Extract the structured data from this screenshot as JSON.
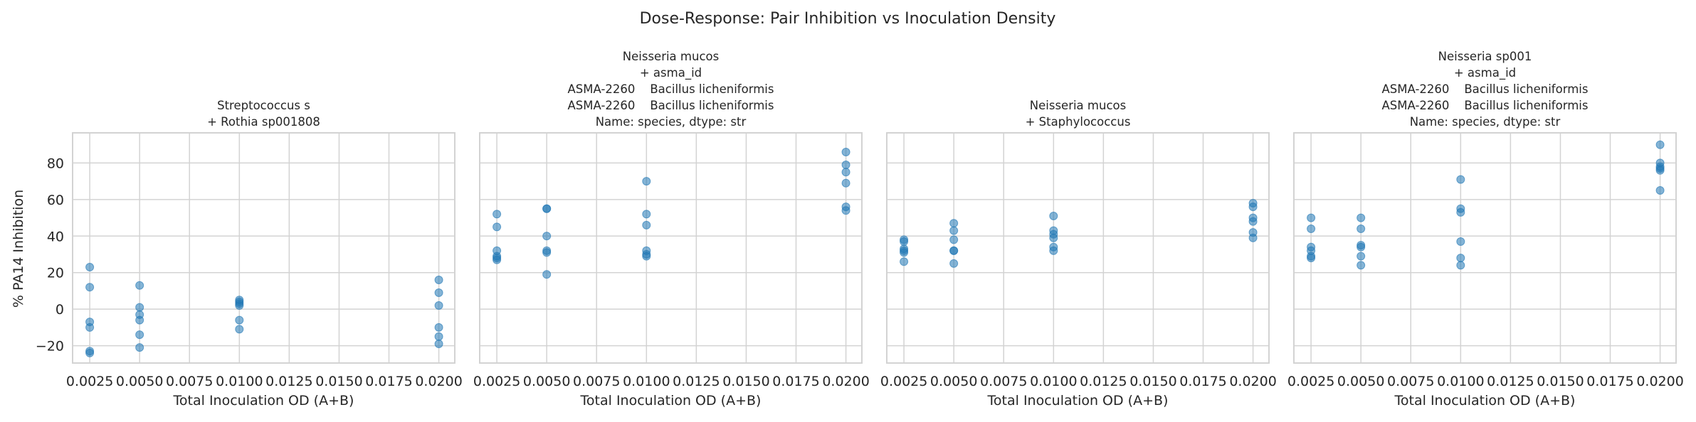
{
  "figure_title": "Dose-Response: Pair Inhibition vs Inoculation Density",
  "colors": {
    "points": "#1f77b4",
    "grid": "#d3d3d3",
    "text": "#262626"
  },
  "chart_data": [
    {
      "type": "scatter",
      "title_lines": [
        "Streptococcus s",
        "+ Rothia sp001808"
      ],
      "xlabel": "Total Inoculation OD (A+B)",
      "ylabel": "% PA14 Inhibition",
      "xlim": [
        0.00164,
        0.0208
      ],
      "ylim": [
        -29.5,
        96.5
      ],
      "xticks": [
        "0.0025",
        "0.0050",
        "0.0075",
        "0.0100",
        "0.0125",
        "0.0150",
        "0.0175",
        "0.0200"
      ],
      "yticks": [
        "80",
        "60",
        "40",
        "20",
        "0",
        "−20"
      ],
      "grid": true,
      "points": [
        [
          0.0025,
          23
        ],
        [
          0.0025,
          12
        ],
        [
          0.0025,
          -7
        ],
        [
          0.0025,
          -10
        ],
        [
          0.0025,
          -23
        ],
        [
          0.0025,
          -24
        ],
        [
          0.005,
          13
        ],
        [
          0.005,
          1
        ],
        [
          0.005,
          -3
        ],
        [
          0.005,
          -6
        ],
        [
          0.005,
          -14
        ],
        [
          0.005,
          -21
        ],
        [
          0.01,
          5
        ],
        [
          0.01,
          4
        ],
        [
          0.01,
          3
        ],
        [
          0.01,
          2
        ],
        [
          0.01,
          -6
        ],
        [
          0.01,
          -11
        ],
        [
          0.02,
          16
        ],
        [
          0.02,
          9
        ],
        [
          0.02,
          2
        ],
        [
          0.02,
          -10
        ],
        [
          0.02,
          -15
        ],
        [
          0.02,
          -19
        ]
      ]
    },
    {
      "type": "scatter",
      "title_lines": [
        "Neisseria mucos",
        "+ asma_id",
        "ASMA-2260    Bacillus licheniformis",
        "ASMA-2260    Bacillus licheniformis",
        "Name: species, dtype: str"
      ],
      "xlabel": "Total Inoculation OD (A+B)",
      "xlim": [
        0.00164,
        0.0208
      ],
      "ylim": [
        -29.5,
        96.5
      ],
      "xticks": [
        "0.0025",
        "0.0050",
        "0.0075",
        "0.0100",
        "0.0125",
        "0.0150",
        "0.0175",
        "0.0200"
      ],
      "grid": true,
      "points": [
        [
          0.0025,
          52
        ],
        [
          0.0025,
          45
        ],
        [
          0.0025,
          32
        ],
        [
          0.0025,
          29
        ],
        [
          0.0025,
          28
        ],
        [
          0.0025,
          27
        ],
        [
          0.005,
          55
        ],
        [
          0.005,
          55
        ],
        [
          0.005,
          40
        ],
        [
          0.005,
          32
        ],
        [
          0.005,
          31
        ],
        [
          0.005,
          19
        ],
        [
          0.01,
          70
        ],
        [
          0.01,
          52
        ],
        [
          0.01,
          46
        ],
        [
          0.01,
          32
        ],
        [
          0.01,
          30
        ],
        [
          0.01,
          29
        ],
        [
          0.02,
          86
        ],
        [
          0.02,
          79
        ],
        [
          0.02,
          75
        ],
        [
          0.02,
          69
        ],
        [
          0.02,
          56
        ],
        [
          0.02,
          54
        ]
      ]
    },
    {
      "type": "scatter",
      "title_lines": [
        "Neisseria mucos",
        "+ Staphylococcus"
      ],
      "xlabel": "Total Inoculation OD (A+B)",
      "xlim": [
        0.00164,
        0.0208
      ],
      "ylim": [
        -29.5,
        96.5
      ],
      "xticks": [
        "0.0025",
        "0.0050",
        "0.0075",
        "0.0100",
        "0.0125",
        "0.0150",
        "0.0175",
        "0.0200"
      ],
      "grid": true,
      "points": [
        [
          0.0025,
          38
        ],
        [
          0.0025,
          37
        ],
        [
          0.0025,
          33
        ],
        [
          0.0025,
          32
        ],
        [
          0.0025,
          31
        ],
        [
          0.0025,
          26
        ],
        [
          0.005,
          47
        ],
        [
          0.005,
          43
        ],
        [
          0.005,
          38
        ],
        [
          0.005,
          32
        ],
        [
          0.005,
          32
        ],
        [
          0.005,
          25
        ],
        [
          0.01,
          51
        ],
        [
          0.01,
          43
        ],
        [
          0.01,
          41
        ],
        [
          0.01,
          39
        ],
        [
          0.01,
          34
        ],
        [
          0.01,
          32
        ],
        [
          0.02,
          58
        ],
        [
          0.02,
          56
        ],
        [
          0.02,
          50
        ],
        [
          0.02,
          48
        ],
        [
          0.02,
          42
        ],
        [
          0.02,
          39
        ]
      ]
    },
    {
      "type": "scatter",
      "title_lines": [
        "Neisseria sp001",
        "+ asma_id",
        "ASMA-2260    Bacillus licheniformis",
        "ASMA-2260    Bacillus licheniformis",
        "Name: species, dtype: str"
      ],
      "xlabel": "Total Inoculation OD (A+B)",
      "xlim": [
        0.00164,
        0.0208
      ],
      "ylim": [
        -29.5,
        96.5
      ],
      "xticks": [
        "0.0025",
        "0.0050",
        "0.0075",
        "0.0100",
        "0.0125",
        "0.0150",
        "0.0175",
        "0.0200"
      ],
      "grid": true,
      "points": [
        [
          0.0025,
          50
        ],
        [
          0.0025,
          44
        ],
        [
          0.0025,
          34
        ],
        [
          0.0025,
          32
        ],
        [
          0.0025,
          29
        ],
        [
          0.0025,
          28
        ],
        [
          0.005,
          50
        ],
        [
          0.005,
          44
        ],
        [
          0.005,
          35
        ],
        [
          0.005,
          34
        ],
        [
          0.005,
          29
        ],
        [
          0.005,
          24
        ],
        [
          0.01,
          71
        ],
        [
          0.01,
          55
        ],
        [
          0.01,
          53
        ],
        [
          0.01,
          37
        ],
        [
          0.01,
          28
        ],
        [
          0.01,
          24
        ],
        [
          0.02,
          90
        ],
        [
          0.02,
          80
        ],
        [
          0.02,
          78
        ],
        [
          0.02,
          77
        ],
        [
          0.02,
          76
        ],
        [
          0.02,
          65
        ]
      ]
    }
  ]
}
